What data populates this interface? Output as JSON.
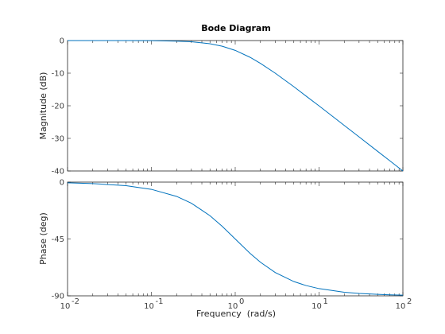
{
  "chart_data": [
    {
      "type": "line",
      "title": "Bode Diagram",
      "xlabel": "",
      "ylabel": "Magnitude (dB)",
      "xscale": "log",
      "xlim": [
        0.01,
        100
      ],
      "ylim": [
        -40,
        0
      ],
      "yticks": [
        "0",
        "-10",
        "-20",
        "-30",
        "-40"
      ],
      "grid": false,
      "series": [
        {
          "color": "#0072BD",
          "x": [
            0.01,
            0.02,
            0.05,
            0.1,
            0.2,
            0.3,
            0.5,
            0.7,
            1,
            1.5,
            2,
            3,
            5,
            7,
            10,
            20,
            30,
            50,
            70,
            100
          ],
          "y": [
            0,
            0,
            -0.01,
            -0.04,
            -0.17,
            -0.37,
            -0.97,
            -1.74,
            -3.01,
            -5.12,
            -6.99,
            -10.0,
            -14.15,
            -17.03,
            -20.04,
            -26.03,
            -29.54,
            -33.98,
            -36.9,
            -40.0
          ]
        }
      ]
    },
    {
      "type": "line",
      "title": "",
      "xlabel": "Frequency  (rad/s)",
      "ylabel": "Phase (deg)",
      "xscale": "log",
      "xlim": [
        0.01,
        100
      ],
      "ylim": [
        -90,
        0
      ],
      "xticks": [
        "10",
        "10",
        "10",
        "10",
        "10"
      ],
      "xtick_exponents": [
        "-2",
        "-1",
        "0",
        "1",
        "2"
      ],
      "yticks": [
        "0",
        "-45",
        "-90"
      ],
      "grid": false,
      "series": [
        {
          "color": "#0072BD",
          "x": [
            0.01,
            0.02,
            0.05,
            0.1,
            0.2,
            0.3,
            0.5,
            0.7,
            1,
            1.5,
            2,
            3,
            5,
            7,
            10,
            20,
            30,
            50,
            70,
            100
          ],
          "y": [
            -0.57,
            -1.15,
            -2.86,
            -5.71,
            -11.31,
            -16.7,
            -26.57,
            -34.99,
            -45.0,
            -56.31,
            -63.43,
            -71.57,
            -78.69,
            -81.87,
            -84.29,
            -87.14,
            -88.09,
            -88.85,
            -89.18,
            -89.43
          ]
        }
      ]
    }
  ]
}
